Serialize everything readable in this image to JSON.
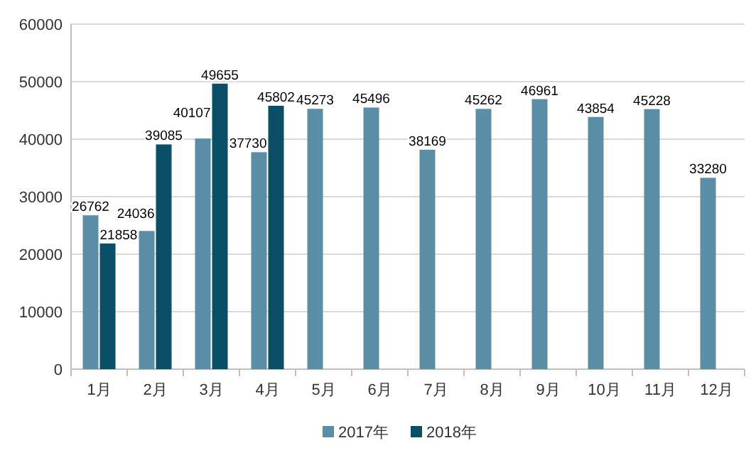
{
  "chart_data": {
    "type": "bar",
    "categories": [
      "1月",
      "2月",
      "3月",
      "4月",
      "5月",
      "6月",
      "7月",
      "8月",
      "9月",
      "10月",
      "11月",
      "12月"
    ],
    "series": [
      {
        "name": "2017年",
        "color": "#5a8ea6",
        "values": [
          26762,
          24036,
          40107,
          37730,
          45273,
          45496,
          38169,
          45262,
          46961,
          43854,
          45228,
          33280
        ]
      },
      {
        "name": "2018年",
        "color": "#0b4f66",
        "values": [
          21858,
          39085,
          49655,
          45802,
          null,
          null,
          null,
          null,
          null,
          null,
          null,
          null
        ]
      }
    ],
    "ylim": [
      0,
      60000
    ],
    "yticks": [
      0,
      10000,
      20000,
      30000,
      40000,
      50000,
      60000
    ],
    "grid": "y",
    "legend": "bottom",
    "data_labels": true
  }
}
